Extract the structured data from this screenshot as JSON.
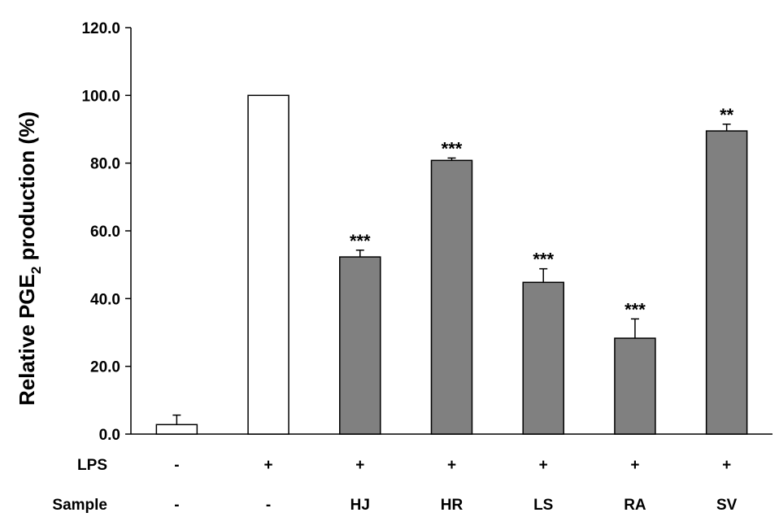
{
  "chart_data": {
    "type": "bar",
    "ylabel": "Relative PGE",
    "ylabel_subscript": "2",
    "ylabel_suffix": " production (%)",
    "ylim": [
      0,
      120
    ],
    "y_ticks": [
      "0.0",
      "20.0",
      "40.0",
      "60.0",
      "80.0",
      "100.0",
      "120.0"
    ],
    "y_tick_values": [
      0,
      20,
      40,
      60,
      80,
      100,
      120
    ],
    "grid": false,
    "values": [
      2.8,
      100.0,
      52.3,
      80.8,
      44.8,
      28.3,
      89.5
    ],
    "errors": [
      2.8,
      0,
      2.0,
      0.7,
      4.0,
      5.7,
      2.0
    ],
    "significance": [
      "",
      "",
      "***",
      "***",
      "***",
      "***",
      "**"
    ],
    "bar_colors": [
      "#ffffff",
      "#ffffff",
      "#808080",
      "#808080",
      "#808080",
      "#808080",
      "#808080"
    ],
    "row_labels": [
      {
        "label": "LPS",
        "values": [
          "-",
          "+",
          "+",
          "+",
          "+",
          "+",
          "+"
        ]
      },
      {
        "label": "Sample",
        "values": [
          "-",
          "-",
          "HJ",
          "HR",
          "LS",
          "RA",
          "SV"
        ]
      }
    ]
  }
}
